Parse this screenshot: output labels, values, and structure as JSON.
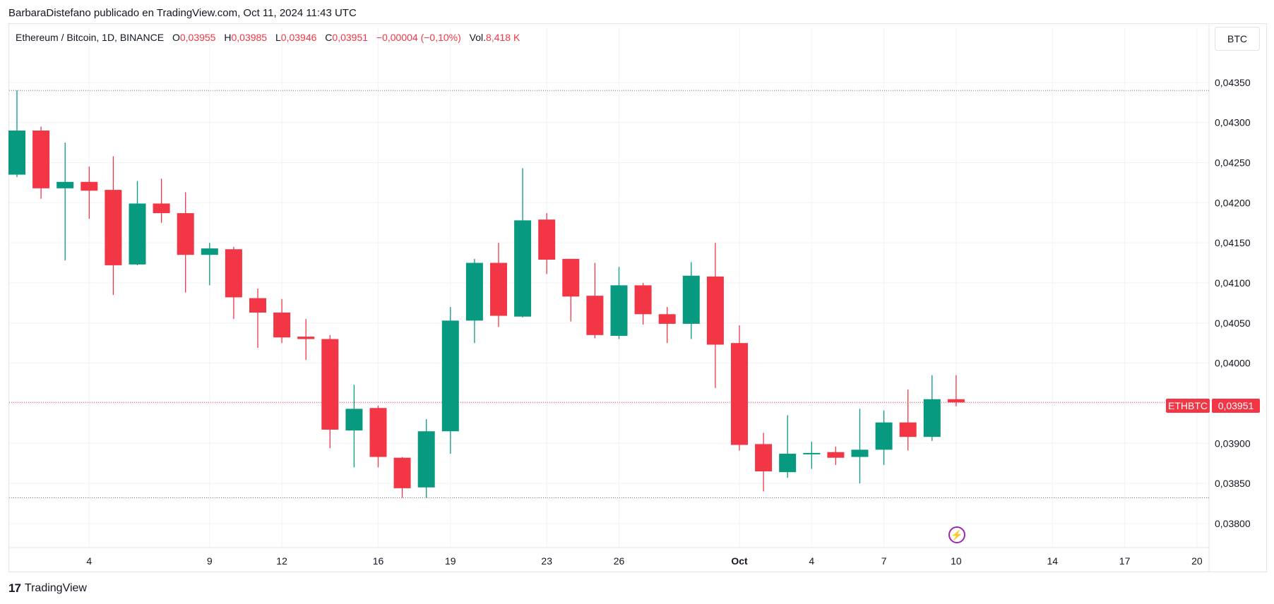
{
  "header": {
    "caption": "BarbaraDistefano publicado en TradingView.com, Oct 11, 2024 11:43 UTC"
  },
  "legend": {
    "symbol": "Ethereum / Bitcoin, 1D, BINANCE",
    "o_label": "O",
    "o_value": "0,03955",
    "h_label": "H",
    "h_value": "0,03985",
    "l_label": "L",
    "l_value": "0,03946",
    "c_label": "C",
    "c_value": "0,03951",
    "change": "−0,00004 (−0,10%)",
    "vol_label": "Vol.",
    "vol_value": "8,418 K"
  },
  "toolbar": {
    "currency": "BTC"
  },
  "price_tag": {
    "symbol": "ETHBTC",
    "price": "0,03951"
  },
  "footer": {
    "brand": "TradingView",
    "logo_glyph": "17"
  },
  "colors": {
    "up": "#089981",
    "down": "#f23645",
    "grid": "#f0f3fa",
    "axis_text": "#131722"
  },
  "icons": {
    "bolt": "lightning-bolt-icon"
  },
  "chart_data": {
    "type": "candlestick",
    "title": "Ethereum / Bitcoin, 1D, BINANCE",
    "ylim": [
      0.0377,
      0.044
    ],
    "y_ticks": [
      "0,04350",
      "0,04300",
      "0,04250",
      "0,04200",
      "0,04150",
      "0,04100",
      "0,04050",
      "0,04000",
      "0,03950",
      "0,03900",
      "0,03850",
      "0,03800"
    ],
    "y_tick_values": [
      0.0435,
      0.043,
      0.0425,
      0.042,
      0.0415,
      0.041,
      0.0405,
      0.04,
      0.0395,
      0.039,
      0.0385,
      0.038
    ],
    "x_tick_labels": [
      {
        "index": 3,
        "label": "4"
      },
      {
        "index": 8,
        "label": "9"
      },
      {
        "index": 11,
        "label": "12"
      },
      {
        "index": 15,
        "label": "16"
      },
      {
        "index": 18,
        "label": "19"
      },
      {
        "index": 22,
        "label": "23"
      },
      {
        "index": 25,
        "label": "26"
      },
      {
        "index": 30,
        "label": "Oct",
        "bold": true
      },
      {
        "index": 33,
        "label": "4"
      },
      {
        "index": 36,
        "label": "7"
      },
      {
        "index": 39,
        "label": "10"
      },
      {
        "index": 43,
        "label": "14"
      },
      {
        "index": 46,
        "label": "17"
      },
      {
        "index": 49,
        "label": "20"
      }
    ],
    "dotted_levels": [
      0.0434,
      0.03832
    ],
    "last_price": 0.03951,
    "candles": [
      {
        "o": 0.04235,
        "h": 0.0434,
        "l": 0.04232,
        "c": 0.0429
      },
      {
        "o": 0.0429,
        "h": 0.04295,
        "l": 0.04205,
        "c": 0.04218
      },
      {
        "o": 0.04218,
        "h": 0.04275,
        "l": 0.04128,
        "c": 0.04226
      },
      {
        "o": 0.04226,
        "h": 0.04245,
        "l": 0.0418,
        "c": 0.04215
      },
      {
        "o": 0.04216,
        "h": 0.04258,
        "l": 0.04085,
        "c": 0.04122
      },
      {
        "o": 0.04123,
        "h": 0.04227,
        "l": 0.04122,
        "c": 0.04199
      },
      {
        "o": 0.04199,
        "h": 0.0423,
        "l": 0.04175,
        "c": 0.04187
      },
      {
        "o": 0.04187,
        "h": 0.04213,
        "l": 0.04088,
        "c": 0.04135
      },
      {
        "o": 0.04135,
        "h": 0.0415,
        "l": 0.04097,
        "c": 0.04143
      },
      {
        "o": 0.04142,
        "h": 0.04145,
        "l": 0.04055,
        "c": 0.04082
      },
      {
        "o": 0.04081,
        "h": 0.04093,
        "l": 0.04019,
        "c": 0.04063
      },
      {
        "o": 0.04063,
        "h": 0.0408,
        "l": 0.04025,
        "c": 0.04032
      },
      {
        "o": 0.04033,
        "h": 0.04055,
        "l": 0.04004,
        "c": 0.0403
      },
      {
        "o": 0.0403,
        "h": 0.04035,
        "l": 0.03894,
        "c": 0.03917
      },
      {
        "o": 0.03916,
        "h": 0.03973,
        "l": 0.0387,
        "c": 0.03943
      },
      {
        "o": 0.03944,
        "h": 0.03947,
        "l": 0.0387,
        "c": 0.03883
      },
      {
        "o": 0.03882,
        "h": 0.03883,
        "l": 0.03832,
        "c": 0.03844
      },
      {
        "o": 0.03845,
        "h": 0.0393,
        "l": 0.03832,
        "c": 0.03915
      },
      {
        "o": 0.03915,
        "h": 0.0407,
        "l": 0.03887,
        "c": 0.04053
      },
      {
        "o": 0.04053,
        "h": 0.0413,
        "l": 0.04025,
        "c": 0.04125
      },
      {
        "o": 0.04125,
        "h": 0.0415,
        "l": 0.04045,
        "c": 0.04059
      },
      {
        "o": 0.04058,
        "h": 0.04243,
        "l": 0.04057,
        "c": 0.04178
      },
      {
        "o": 0.04179,
        "h": 0.04187,
        "l": 0.04111,
        "c": 0.04129
      },
      {
        "o": 0.0413,
        "h": 0.0413,
        "l": 0.04052,
        "c": 0.04083
      },
      {
        "o": 0.04084,
        "h": 0.04125,
        "l": 0.04031,
        "c": 0.04035
      },
      {
        "o": 0.04034,
        "h": 0.0412,
        "l": 0.0403,
        "c": 0.04097
      },
      {
        "o": 0.04097,
        "h": 0.041,
        "l": 0.04048,
        "c": 0.04061
      },
      {
        "o": 0.04061,
        "h": 0.0407,
        "l": 0.04025,
        "c": 0.04049
      },
      {
        "o": 0.04049,
        "h": 0.04126,
        "l": 0.0403,
        "c": 0.04109
      },
      {
        "o": 0.04108,
        "h": 0.0415,
        "l": 0.03969,
        "c": 0.04023
      },
      {
        "o": 0.04025,
        "h": 0.04047,
        "l": 0.03891,
        "c": 0.03898
      },
      {
        "o": 0.03899,
        "h": 0.03913,
        "l": 0.0384,
        "c": 0.03865
      },
      {
        "o": 0.03864,
        "h": 0.03935,
        "l": 0.03857,
        "c": 0.03887
      },
      {
        "o": 0.03887,
        "h": 0.03902,
        "l": 0.03868,
        "c": 0.03888
      },
      {
        "o": 0.03889,
        "h": 0.03896,
        "l": 0.03873,
        "c": 0.03882
      },
      {
        "o": 0.03883,
        "h": 0.03943,
        "l": 0.0385,
        "c": 0.03892
      },
      {
        "o": 0.03892,
        "h": 0.03941,
        "l": 0.03873,
        "c": 0.03926
      },
      {
        "o": 0.03926,
        "h": 0.03967,
        "l": 0.03891,
        "c": 0.03908
      },
      {
        "o": 0.03908,
        "h": 0.03985,
        "l": 0.03903,
        "c": 0.03955
      },
      {
        "o": 0.03955,
        "h": 0.03985,
        "l": 0.03946,
        "c": 0.03951
      }
    ]
  }
}
